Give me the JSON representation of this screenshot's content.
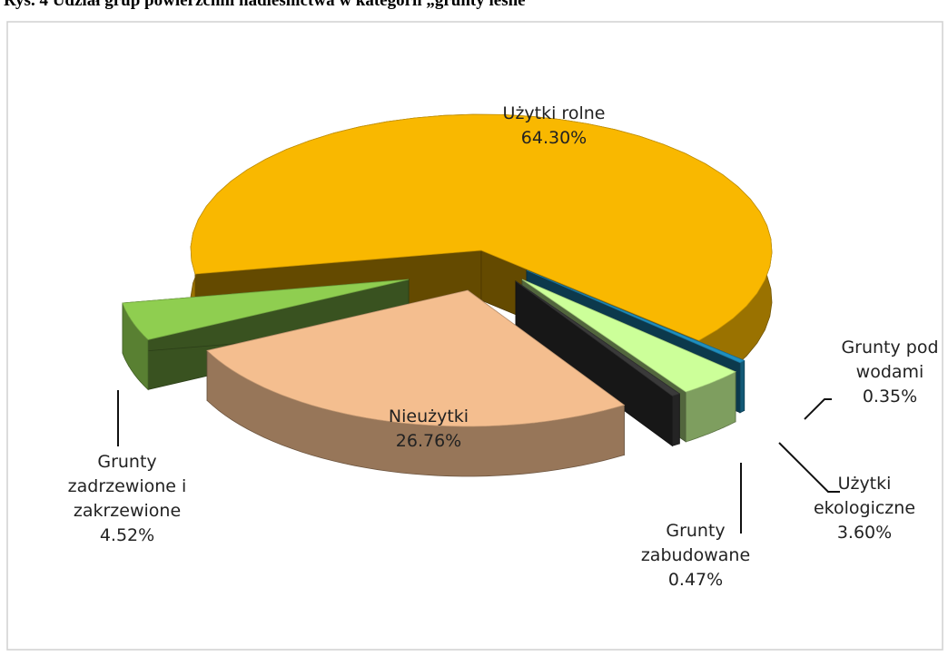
{
  "chart_data": {
    "type": "pie",
    "title": "Rys. 4 Udział grup powierzchni nadleśnictwa w kategorii „grunty leśne”",
    "categories": [
      "Użytki rolne",
      "Grunty pod wodami",
      "Użytki ekologiczne",
      "Grunty zabudowane",
      "Nieużytki",
      "Grunty zadrzewione i zakrzewione"
    ],
    "values": [
      64.3,
      0.35,
      3.6,
      0.47,
      26.76,
      4.52
    ],
    "value_labels": [
      "64.30%",
      "0.35%",
      "3.60%",
      "0.47%",
      "26.76%",
      "4.52%"
    ],
    "colors": [
      "#f9b800",
      "#1f8fbf",
      "#ccff99",
      "#3a3a3a",
      "#f4be8f",
      "#8fce50"
    ]
  }
}
